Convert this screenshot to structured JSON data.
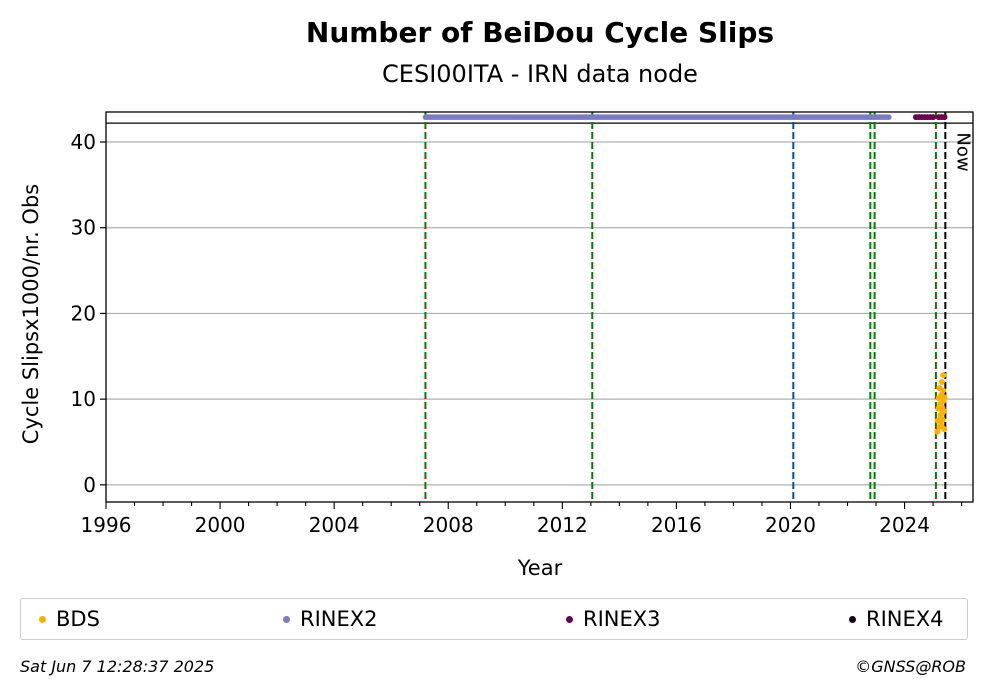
{
  "chart_data": {
    "type": "scatter",
    "title": "Number of BeiDou Cycle Slips",
    "subtitle": "CESI00ITA - IRN data node",
    "xlabel": "Year",
    "ylabel": "Cycle Slipsx1000/nr. Obs",
    "xlim": [
      1996,
      2026.4
    ],
    "ylim": [
      -2,
      43.5
    ],
    "xticks": [
      "1996",
      "2000",
      "2004",
      "2008",
      "2012",
      "2016",
      "2020",
      "2024"
    ],
    "yticks": [
      "0",
      "10",
      "20",
      "30",
      "40"
    ],
    "grid": "y",
    "legend_position": "bottom",
    "now_label": "Now",
    "now_year": 2025.43,
    "reference_line_y": 42.2,
    "vertical_lines": [
      {
        "x": 2007.2,
        "style": "green-red-dashed"
      },
      {
        "x": 2013.05,
        "style": "green-dashed"
      },
      {
        "x": 2020.1,
        "style": "blue-dashed"
      },
      {
        "x": 2022.8,
        "style": "green-dashed"
      },
      {
        "x": 2022.95,
        "style": "green-dashed"
      },
      {
        "x": 2025.1,
        "style": "green-red-dashed"
      },
      {
        "x": 2025.43,
        "style": "black-dashed"
      }
    ],
    "series": [
      {
        "name": "BDS",
        "color": "#ffb000",
        "points": [
          [
            2025.15,
            6.2
          ],
          [
            2025.17,
            7.5
          ],
          [
            2025.19,
            8.9
          ],
          [
            2025.2,
            10.1
          ],
          [
            2025.22,
            11.3
          ],
          [
            2025.23,
            6.8
          ],
          [
            2025.25,
            9.4
          ],
          [
            2025.26,
            8.1
          ],
          [
            2025.28,
            7.0
          ],
          [
            2025.29,
            10.5
          ],
          [
            2025.31,
            12.0
          ],
          [
            2025.32,
            9.0
          ],
          [
            2025.33,
            8.4
          ],
          [
            2025.34,
            7.6
          ],
          [
            2025.35,
            11.0
          ],
          [
            2025.36,
            12.8
          ],
          [
            2025.37,
            9.8
          ],
          [
            2025.38,
            8.6
          ],
          [
            2025.39,
            6.5
          ],
          [
            2025.4,
            10.2
          ]
        ]
      },
      {
        "name": "RINEX2",
        "color": "#7b7bbf",
        "range": [
          2007.2,
          2023.45
        ],
        "y": 42.9
      },
      {
        "name": "RINEX3",
        "color": "#6a0050",
        "points": [
          [
            2024.4,
            42.9
          ],
          [
            2024.5,
            42.9
          ],
          [
            2024.6,
            42.9
          ],
          [
            2024.7,
            42.9
          ],
          [
            2024.8,
            42.9
          ],
          [
            2024.9,
            42.9
          ],
          [
            2025.0,
            42.9
          ],
          [
            2025.2,
            42.9
          ],
          [
            2025.3,
            42.9
          ],
          [
            2025.4,
            42.9
          ]
        ]
      },
      {
        "name": "RINEX4",
        "color": "#1a0020",
        "points": []
      }
    ]
  },
  "footer": {
    "timestamp": "Sat Jun  7 12:28:37 2025",
    "credit": "©GNSS@ROB"
  }
}
